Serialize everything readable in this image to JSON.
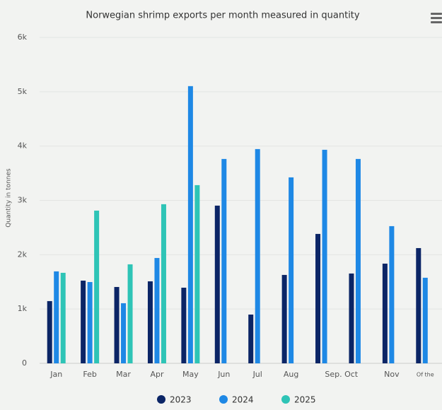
{
  "chart_data": {
    "type": "bar",
    "title": "Norwegian shrimp exports per month measured in quantity",
    "y_label": "Quantity in tonnes",
    "categories": [
      "Jan",
      "Feb",
      "Mar",
      "Apr",
      "May",
      "Jun",
      "Jul",
      "Aug",
      "Sep. Oct",
      null,
      "Nov",
      "Of the"
    ],
    "series": [
      {
        "name": "2023",
        "color": "#0b2566",
        "values": [
          1146,
          1523,
          1406,
          1510,
          1393,
          2904,
          898,
          1628,
          2383,
          1654,
          1836,
          2122
        ]
      },
      {
        "name": "2024",
        "color": "#1e88e5",
        "values": [
          1693,
          1497,
          1107,
          1940,
          5104,
          3763,
          3945,
          3424,
          3932,
          3763,
          2526,
          1576
        ]
      },
      {
        "name": "2025",
        "color": "#2ec4b6",
        "values": [
          1667,
          2812,
          1823,
          2930,
          3281,
          null,
          null,
          null,
          null,
          null,
          null,
          null
        ]
      }
    ],
    "ylim": [
      0,
      6000
    ],
    "yticks": [
      0,
      {
        "value": 1000,
        "label": "1k"
      },
      {
        "value": 2000,
        "label": "2k"
      },
      {
        "value": 3000,
        "label": "3k"
      },
      {
        "value": 4000,
        "label": "4k"
      },
      {
        "value": 5000,
        "label": "5k"
      },
      {
        "value": 6000,
        "label": "6k"
      }
    ],
    "grid": true,
    "legend": "bottom"
  }
}
